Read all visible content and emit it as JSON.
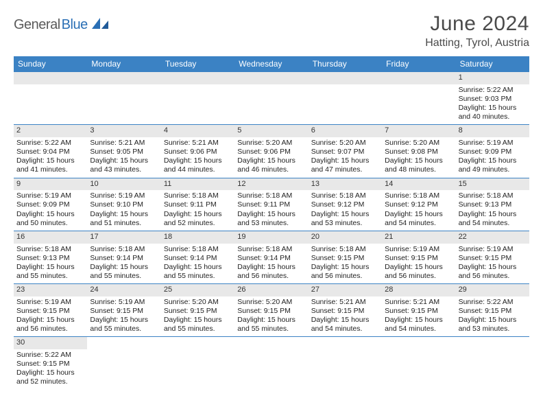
{
  "logo": {
    "part1": "General",
    "part2": "Blue"
  },
  "title": "June 2024",
  "location": "Hatting, Tyrol, Austria",
  "colors": {
    "header_bg": "#3b82c4",
    "header_text": "#ffffff",
    "daynum_bg": "#e8e8e8",
    "row_border": "#3b82c4",
    "logo_gray": "#5a5a5a",
    "logo_blue": "#2a6fb5",
    "title_color": "#4a4a4a"
  },
  "weekdays": [
    "Sunday",
    "Monday",
    "Tuesday",
    "Wednesday",
    "Thursday",
    "Friday",
    "Saturday"
  ],
  "weeks": [
    [
      null,
      null,
      null,
      null,
      null,
      null,
      {
        "n": "1",
        "sr": "Sunrise: 5:22 AM",
        "ss": "Sunset: 9:03 PM",
        "d1": "Daylight: 15 hours",
        "d2": "and 40 minutes."
      }
    ],
    [
      {
        "n": "2",
        "sr": "Sunrise: 5:22 AM",
        "ss": "Sunset: 9:04 PM",
        "d1": "Daylight: 15 hours",
        "d2": "and 41 minutes."
      },
      {
        "n": "3",
        "sr": "Sunrise: 5:21 AM",
        "ss": "Sunset: 9:05 PM",
        "d1": "Daylight: 15 hours",
        "d2": "and 43 minutes."
      },
      {
        "n": "4",
        "sr": "Sunrise: 5:21 AM",
        "ss": "Sunset: 9:06 PM",
        "d1": "Daylight: 15 hours",
        "d2": "and 44 minutes."
      },
      {
        "n": "5",
        "sr": "Sunrise: 5:20 AM",
        "ss": "Sunset: 9:06 PM",
        "d1": "Daylight: 15 hours",
        "d2": "and 46 minutes."
      },
      {
        "n": "6",
        "sr": "Sunrise: 5:20 AM",
        "ss": "Sunset: 9:07 PM",
        "d1": "Daylight: 15 hours",
        "d2": "and 47 minutes."
      },
      {
        "n": "7",
        "sr": "Sunrise: 5:20 AM",
        "ss": "Sunset: 9:08 PM",
        "d1": "Daylight: 15 hours",
        "d2": "and 48 minutes."
      },
      {
        "n": "8",
        "sr": "Sunrise: 5:19 AM",
        "ss": "Sunset: 9:09 PM",
        "d1": "Daylight: 15 hours",
        "d2": "and 49 minutes."
      }
    ],
    [
      {
        "n": "9",
        "sr": "Sunrise: 5:19 AM",
        "ss": "Sunset: 9:09 PM",
        "d1": "Daylight: 15 hours",
        "d2": "and 50 minutes."
      },
      {
        "n": "10",
        "sr": "Sunrise: 5:19 AM",
        "ss": "Sunset: 9:10 PM",
        "d1": "Daylight: 15 hours",
        "d2": "and 51 minutes."
      },
      {
        "n": "11",
        "sr": "Sunrise: 5:18 AM",
        "ss": "Sunset: 9:11 PM",
        "d1": "Daylight: 15 hours",
        "d2": "and 52 minutes."
      },
      {
        "n": "12",
        "sr": "Sunrise: 5:18 AM",
        "ss": "Sunset: 9:11 PM",
        "d1": "Daylight: 15 hours",
        "d2": "and 53 minutes."
      },
      {
        "n": "13",
        "sr": "Sunrise: 5:18 AM",
        "ss": "Sunset: 9:12 PM",
        "d1": "Daylight: 15 hours",
        "d2": "and 53 minutes."
      },
      {
        "n": "14",
        "sr": "Sunrise: 5:18 AM",
        "ss": "Sunset: 9:12 PM",
        "d1": "Daylight: 15 hours",
        "d2": "and 54 minutes."
      },
      {
        "n": "15",
        "sr": "Sunrise: 5:18 AM",
        "ss": "Sunset: 9:13 PM",
        "d1": "Daylight: 15 hours",
        "d2": "and 54 minutes."
      }
    ],
    [
      {
        "n": "16",
        "sr": "Sunrise: 5:18 AM",
        "ss": "Sunset: 9:13 PM",
        "d1": "Daylight: 15 hours",
        "d2": "and 55 minutes."
      },
      {
        "n": "17",
        "sr": "Sunrise: 5:18 AM",
        "ss": "Sunset: 9:14 PM",
        "d1": "Daylight: 15 hours",
        "d2": "and 55 minutes."
      },
      {
        "n": "18",
        "sr": "Sunrise: 5:18 AM",
        "ss": "Sunset: 9:14 PM",
        "d1": "Daylight: 15 hours",
        "d2": "and 55 minutes."
      },
      {
        "n": "19",
        "sr": "Sunrise: 5:18 AM",
        "ss": "Sunset: 9:14 PM",
        "d1": "Daylight: 15 hours",
        "d2": "and 56 minutes."
      },
      {
        "n": "20",
        "sr": "Sunrise: 5:18 AM",
        "ss": "Sunset: 9:15 PM",
        "d1": "Daylight: 15 hours",
        "d2": "and 56 minutes."
      },
      {
        "n": "21",
        "sr": "Sunrise: 5:19 AM",
        "ss": "Sunset: 9:15 PM",
        "d1": "Daylight: 15 hours",
        "d2": "and 56 minutes."
      },
      {
        "n": "22",
        "sr": "Sunrise: 5:19 AM",
        "ss": "Sunset: 9:15 PM",
        "d1": "Daylight: 15 hours",
        "d2": "and 56 minutes."
      }
    ],
    [
      {
        "n": "23",
        "sr": "Sunrise: 5:19 AM",
        "ss": "Sunset: 9:15 PM",
        "d1": "Daylight: 15 hours",
        "d2": "and 56 minutes."
      },
      {
        "n": "24",
        "sr": "Sunrise: 5:19 AM",
        "ss": "Sunset: 9:15 PM",
        "d1": "Daylight: 15 hours",
        "d2": "and 55 minutes."
      },
      {
        "n": "25",
        "sr": "Sunrise: 5:20 AM",
        "ss": "Sunset: 9:15 PM",
        "d1": "Daylight: 15 hours",
        "d2": "and 55 minutes."
      },
      {
        "n": "26",
        "sr": "Sunrise: 5:20 AM",
        "ss": "Sunset: 9:15 PM",
        "d1": "Daylight: 15 hours",
        "d2": "and 55 minutes."
      },
      {
        "n": "27",
        "sr": "Sunrise: 5:21 AM",
        "ss": "Sunset: 9:15 PM",
        "d1": "Daylight: 15 hours",
        "d2": "and 54 minutes."
      },
      {
        "n": "28",
        "sr": "Sunrise: 5:21 AM",
        "ss": "Sunset: 9:15 PM",
        "d1": "Daylight: 15 hours",
        "d2": "and 54 minutes."
      },
      {
        "n": "29",
        "sr": "Sunrise: 5:22 AM",
        "ss": "Sunset: 9:15 PM",
        "d1": "Daylight: 15 hours",
        "d2": "and 53 minutes."
      }
    ],
    [
      {
        "n": "30",
        "sr": "Sunrise: 5:22 AM",
        "ss": "Sunset: 9:15 PM",
        "d1": "Daylight: 15 hours",
        "d2": "and 52 minutes."
      },
      null,
      null,
      null,
      null,
      null,
      null
    ]
  ]
}
